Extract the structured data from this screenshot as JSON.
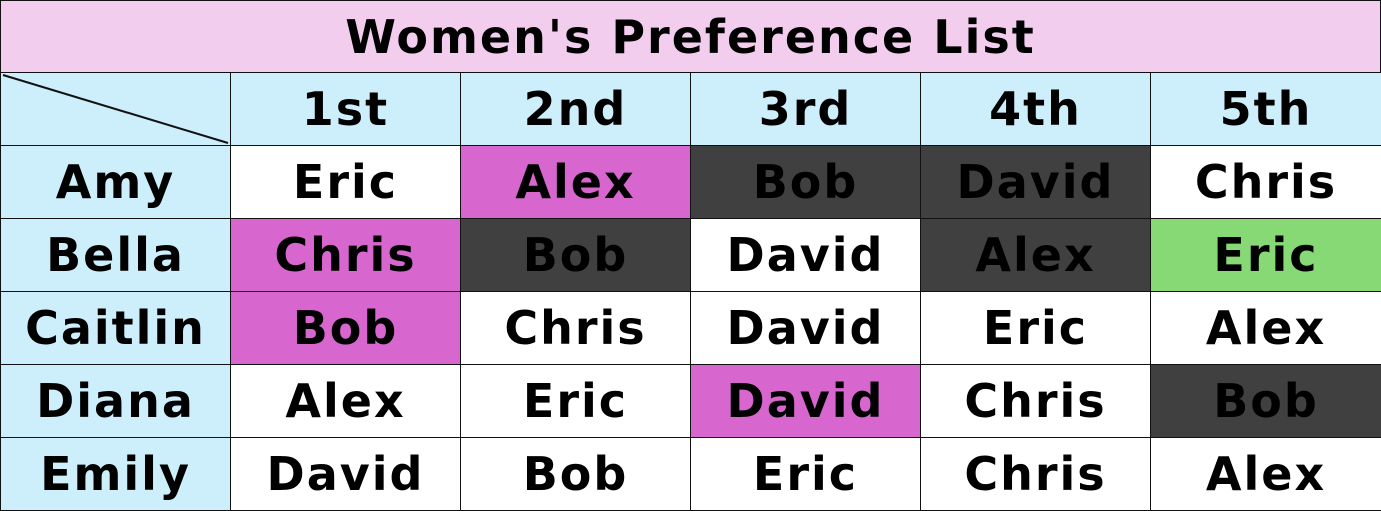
{
  "title": "Women's Preference List",
  "colors": {
    "title_bg": "#f2cdee",
    "header_bg": "#cdeefb",
    "white": "#ffffff",
    "pink": "#d767cf",
    "dark": "#404040",
    "green": "#86d974"
  },
  "columns": [
    "1st",
    "2nd",
    "3rd",
    "4th",
    "5th"
  ],
  "rows": [
    {
      "name": "Amy",
      "cells": [
        {
          "text": "Eric",
          "color": "white"
        },
        {
          "text": "Alex",
          "color": "pink"
        },
        {
          "text": "Bob",
          "color": "dark"
        },
        {
          "text": "David",
          "color": "dark"
        },
        {
          "text": "Chris",
          "color": "white"
        }
      ]
    },
    {
      "name": "Bella",
      "cells": [
        {
          "text": "Chris",
          "color": "pink"
        },
        {
          "text": "Bob",
          "color": "dark"
        },
        {
          "text": "David",
          "color": "white"
        },
        {
          "text": "Alex",
          "color": "dark"
        },
        {
          "text": "Eric",
          "color": "green"
        }
      ]
    },
    {
      "name": "Caitlin",
      "cells": [
        {
          "text": "Bob",
          "color": "pink"
        },
        {
          "text": "Chris",
          "color": "white"
        },
        {
          "text": "David",
          "color": "white"
        },
        {
          "text": "Eric",
          "color": "white"
        },
        {
          "text": "Alex",
          "color": "white"
        }
      ]
    },
    {
      "name": "Diana",
      "cells": [
        {
          "text": "Alex",
          "color": "white"
        },
        {
          "text": "Eric",
          "color": "white"
        },
        {
          "text": "David",
          "color": "pink"
        },
        {
          "text": "Chris",
          "color": "white"
        },
        {
          "text": "Bob",
          "color": "dark"
        }
      ]
    },
    {
      "name": "Emily",
      "cells": [
        {
          "text": "David",
          "color": "white"
        },
        {
          "text": "Bob",
          "color": "white"
        },
        {
          "text": "Eric",
          "color": "white"
        },
        {
          "text": "Chris",
          "color": "white"
        },
        {
          "text": "Alex",
          "color": "white"
        }
      ]
    }
  ]
}
